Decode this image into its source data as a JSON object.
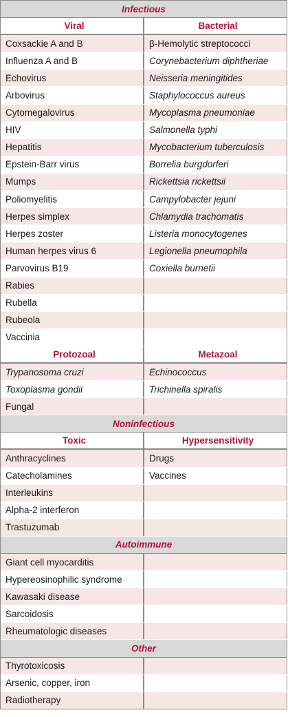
{
  "sections": [
    {
      "title": "Infectious",
      "groups": [
        {
          "headers": [
            "Viral",
            "Bacterial"
          ],
          "rows": [
            {
              "left": "Coxsackie A and B",
              "right": "β-Hemolytic streptococci",
              "left_italic": false,
              "right_italic": false
            },
            {
              "left": "Influenza A and B",
              "right": "Corynebacterium diphtheriae",
              "left_italic": false,
              "right_italic": true
            },
            {
              "left": "Echovirus",
              "right": "Neisseria meningitides",
              "left_italic": false,
              "right_italic": true
            },
            {
              "left": "Arbovirus",
              "right": "Staphylococcus aureus",
              "left_italic": false,
              "right_italic": true
            },
            {
              "left": "Cytomegalovirus",
              "right": "Mycoplasma pneumoniae",
              "left_italic": false,
              "right_italic": true
            },
            {
              "left": "HIV",
              "right": "Salmonella typhi",
              "left_italic": false,
              "right_italic": true
            },
            {
              "left": "Hepatitis",
              "right": "Mycobacterium tuberculosis",
              "left_italic": false,
              "right_italic": true
            },
            {
              "left": "Epstein-Barr virus",
              "right": "Borrelia burgdorferi",
              "left_italic": false,
              "right_italic": true
            },
            {
              "left": "Mumps",
              "right": "Rickettsia rickettsii",
              "left_italic": false,
              "right_italic": true
            },
            {
              "left": "Poliomyelitis",
              "right": "Campylobacter jejuni",
              "left_italic": false,
              "right_italic": true
            },
            {
              "left": "Herpes simplex",
              "right": "Chlamydia trachomatis",
              "left_italic": false,
              "right_italic": true
            },
            {
              "left": "Herpes zoster",
              "right": "Listeria monocytogenes",
              "left_italic": false,
              "right_italic": true
            },
            {
              "left": "Human herpes virus 6",
              "right": "Legionella pneumophila",
              "left_italic": false,
              "right_italic": true
            },
            {
              "left": "Parvovirus B19",
              "right": "Coxiella burnetii",
              "left_italic": false,
              "right_italic": true
            },
            {
              "left": "Rabies",
              "right": "",
              "left_italic": false,
              "right_italic": false
            },
            {
              "left": "Rubella",
              "right": "",
              "left_italic": false,
              "right_italic": false
            },
            {
              "left": "Rubeola",
              "right": "",
              "left_italic": false,
              "right_italic": false
            },
            {
              "left": "Vaccinia",
              "right": "",
              "left_italic": false,
              "right_italic": false
            }
          ]
        },
        {
          "headers": [
            "Protozoal",
            "Metazoal"
          ],
          "rows": [
            {
              "left": "Trypanosoma cruzi",
              "right": "Echinococcus",
              "left_italic": true,
              "right_italic": true
            },
            {
              "left": "Toxoplasma gondii",
              "right": "Trichinella spiralis",
              "left_italic": true,
              "right_italic": true
            },
            {
              "left": "Fungal",
              "right": "",
              "left_italic": false,
              "right_italic": false
            }
          ]
        }
      ]
    },
    {
      "title": "Noninfectious",
      "groups": [
        {
          "headers": [
            "Toxic",
            "Hypersensitivity"
          ],
          "rows": [
            {
              "left": "Anthracyclines",
              "right": "Drugs",
              "left_italic": false,
              "right_italic": false
            },
            {
              "left": "Catecholamines",
              "right": "Vaccines",
              "left_italic": false,
              "right_italic": false
            },
            {
              "left": "Interleukins",
              "right": "",
              "left_italic": false,
              "right_italic": false
            },
            {
              "left": "Alpha-2 interferon",
              "right": "",
              "left_italic": false,
              "right_italic": false
            },
            {
              "left": "Trastuzumab",
              "right": "",
              "left_italic": false,
              "right_italic": false
            }
          ]
        }
      ]
    },
    {
      "title": "Autoimmune",
      "groups": [
        {
          "headers": [],
          "rows": [
            {
              "left": "Giant cell myocarditis",
              "right": "",
              "left_italic": false,
              "right_italic": false
            },
            {
              "left": "Hypereosinophilic syndrome",
              "right": "",
              "left_italic": false,
              "right_italic": false
            },
            {
              "left": "Kawasaki disease",
              "right": "",
              "left_italic": false,
              "right_italic": false
            },
            {
              "left": "Sarcoidosis",
              "right": "",
              "left_italic": false,
              "right_italic": false
            },
            {
              "left": "Rheumatologic diseases",
              "right": "",
              "left_italic": false,
              "right_italic": false
            }
          ]
        }
      ]
    },
    {
      "title": "Other",
      "groups": [
        {
          "headers": [],
          "rows": [
            {
              "left": "Thyrotoxicosis",
              "right": "",
              "left_italic": false,
              "right_italic": false
            },
            {
              "left": "Arsenic, copper, iron",
              "right": "",
              "left_italic": false,
              "right_italic": false
            },
            {
              "left": "Radiotherapy",
              "right": "",
              "left_italic": false,
              "right_italic": false
            }
          ]
        }
      ]
    }
  ],
  "colors": {
    "heading_text": "#b0123a",
    "section_band": "#d9d9d9",
    "row_shade": "#f6e6e6",
    "rule": "#8a8a8a"
  }
}
